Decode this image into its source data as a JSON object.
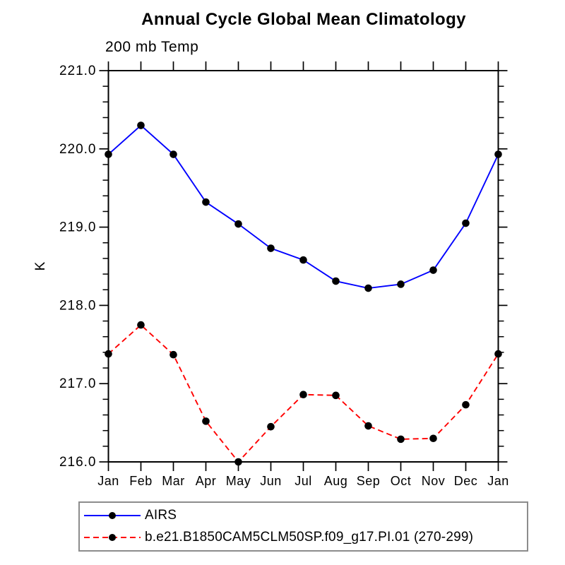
{
  "chart_data": {
    "type": "line",
    "title": "Annual Cycle Global Mean Climatology",
    "subtitle": "200 mb Temp",
    "ylabel": "K",
    "xlabel": "",
    "categories": [
      "Jan",
      "Feb",
      "Mar",
      "Apr",
      "May",
      "Jun",
      "Jul",
      "Aug",
      "Sep",
      "Oct",
      "Nov",
      "Dec",
      "Jan"
    ],
    "ylim": [
      216.0,
      221.0
    ],
    "ytick_interval": 1.0,
    "yminor_interval": 0.2,
    "ytick_label_format": "one_decimal",
    "grid": false,
    "legend_position": "bottom",
    "axis_color": "#000000",
    "marker": "filled-circle",
    "marker_color": "#000000",
    "series": [
      {
        "name": "AIRS",
        "color": "#0000ff",
        "line_style": "solid",
        "values": [
          219.93,
          220.3,
          219.93,
          219.32,
          219.04,
          218.73,
          218.58,
          218.31,
          218.22,
          218.27,
          218.45,
          219.05,
          219.93
        ]
      },
      {
        "name": "b.e21.B1850CAM5CLM50SP.f09_g17.PI.01 (270-299)",
        "color": "#ff0000",
        "line_style": "dashed",
        "values": [
          217.38,
          217.75,
          217.37,
          216.52,
          216.0,
          216.45,
          216.86,
          216.85,
          216.46,
          216.29,
          216.3,
          216.73,
          217.38
        ]
      }
    ]
  }
}
